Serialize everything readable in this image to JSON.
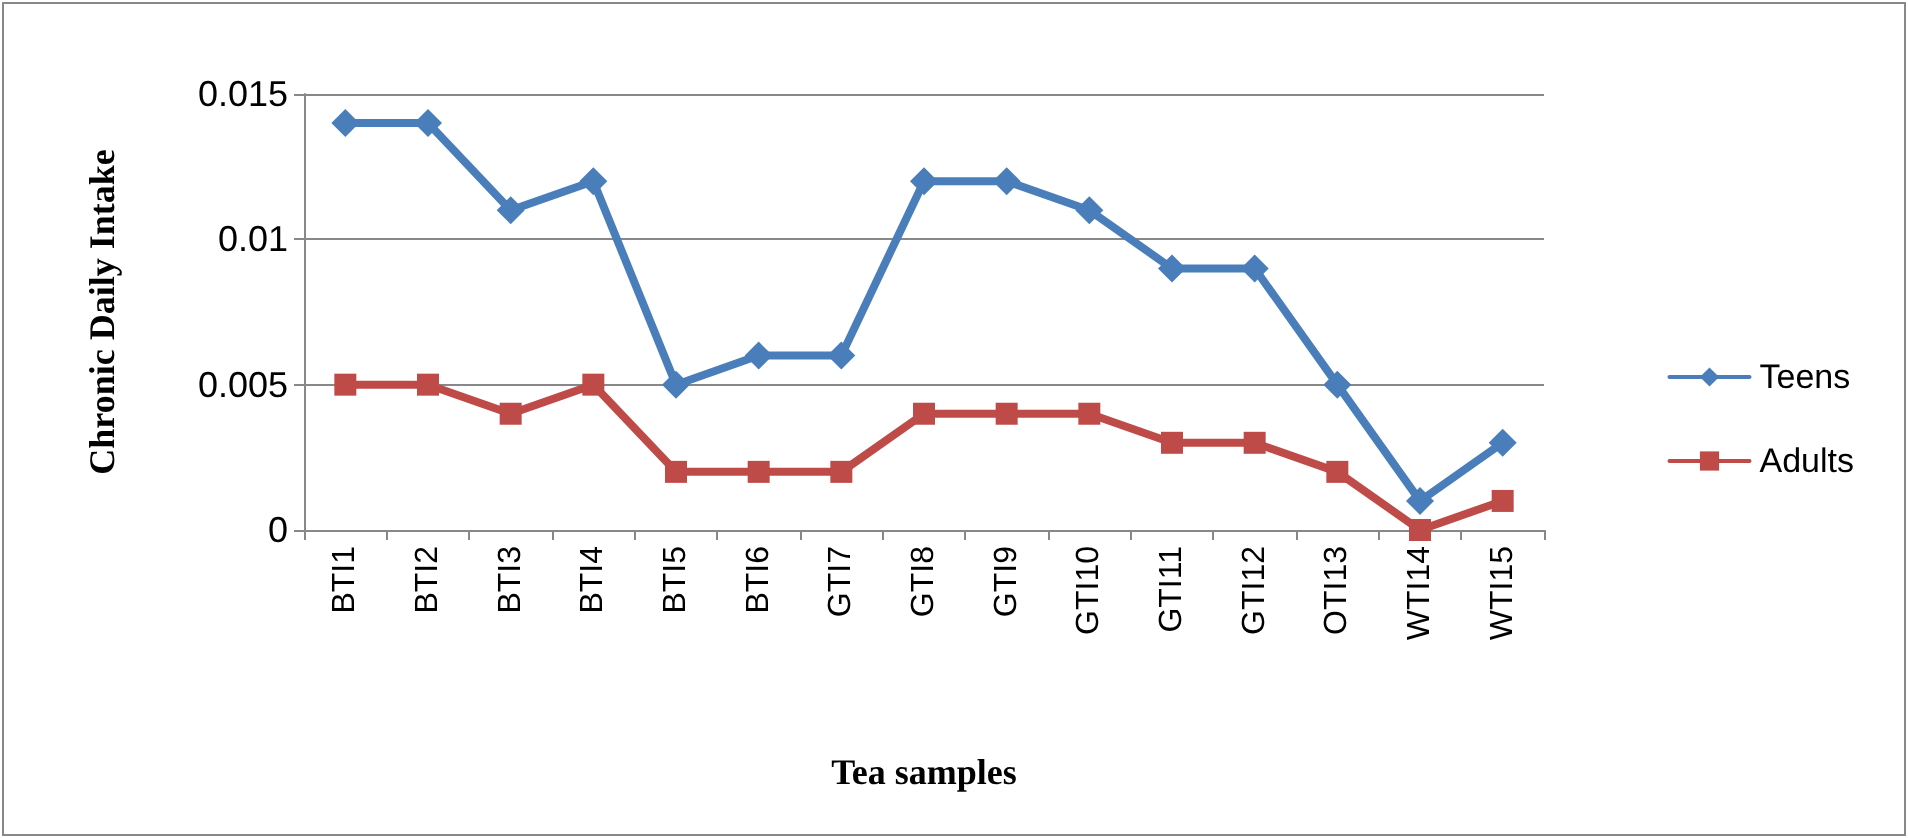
{
  "chart_data": {
    "type": "line",
    "xlabel": "Tea samples",
    "ylabel": "Chronic Daily Intake",
    "categories": [
      "BTI1",
      "BTI2",
      "BTI3",
      "BTI4",
      "BTI5",
      "BTI6",
      "GTI7",
      "GTI8",
      "GTI9",
      "GTI10",
      "GTI11",
      "GTI12",
      "OTI13",
      "WTI14",
      "WTI15"
    ],
    "series": [
      {
        "name": "Teens",
        "color": "#4a7ebb",
        "marker": "diamond",
        "values": [
          0.014,
          0.014,
          0.011,
          0.012,
          0.005,
          0.006,
          0.006,
          0.012,
          0.012,
          0.011,
          0.009,
          0.009,
          0.005,
          0.001,
          0.003
        ]
      },
      {
        "name": "Adults",
        "color": "#be4b48",
        "marker": "square",
        "values": [
          0.005,
          0.005,
          0.004,
          0.005,
          0.002,
          0.002,
          0.002,
          0.004,
          0.004,
          0.004,
          0.003,
          0.003,
          0.002,
          0,
          0.001
        ]
      }
    ],
    "ylim": [
      0,
      0.015
    ],
    "yticks": [
      0,
      0.005,
      0.01,
      0.015
    ],
    "grid": "y",
    "legend": "right",
    "line_style": "solid"
  }
}
